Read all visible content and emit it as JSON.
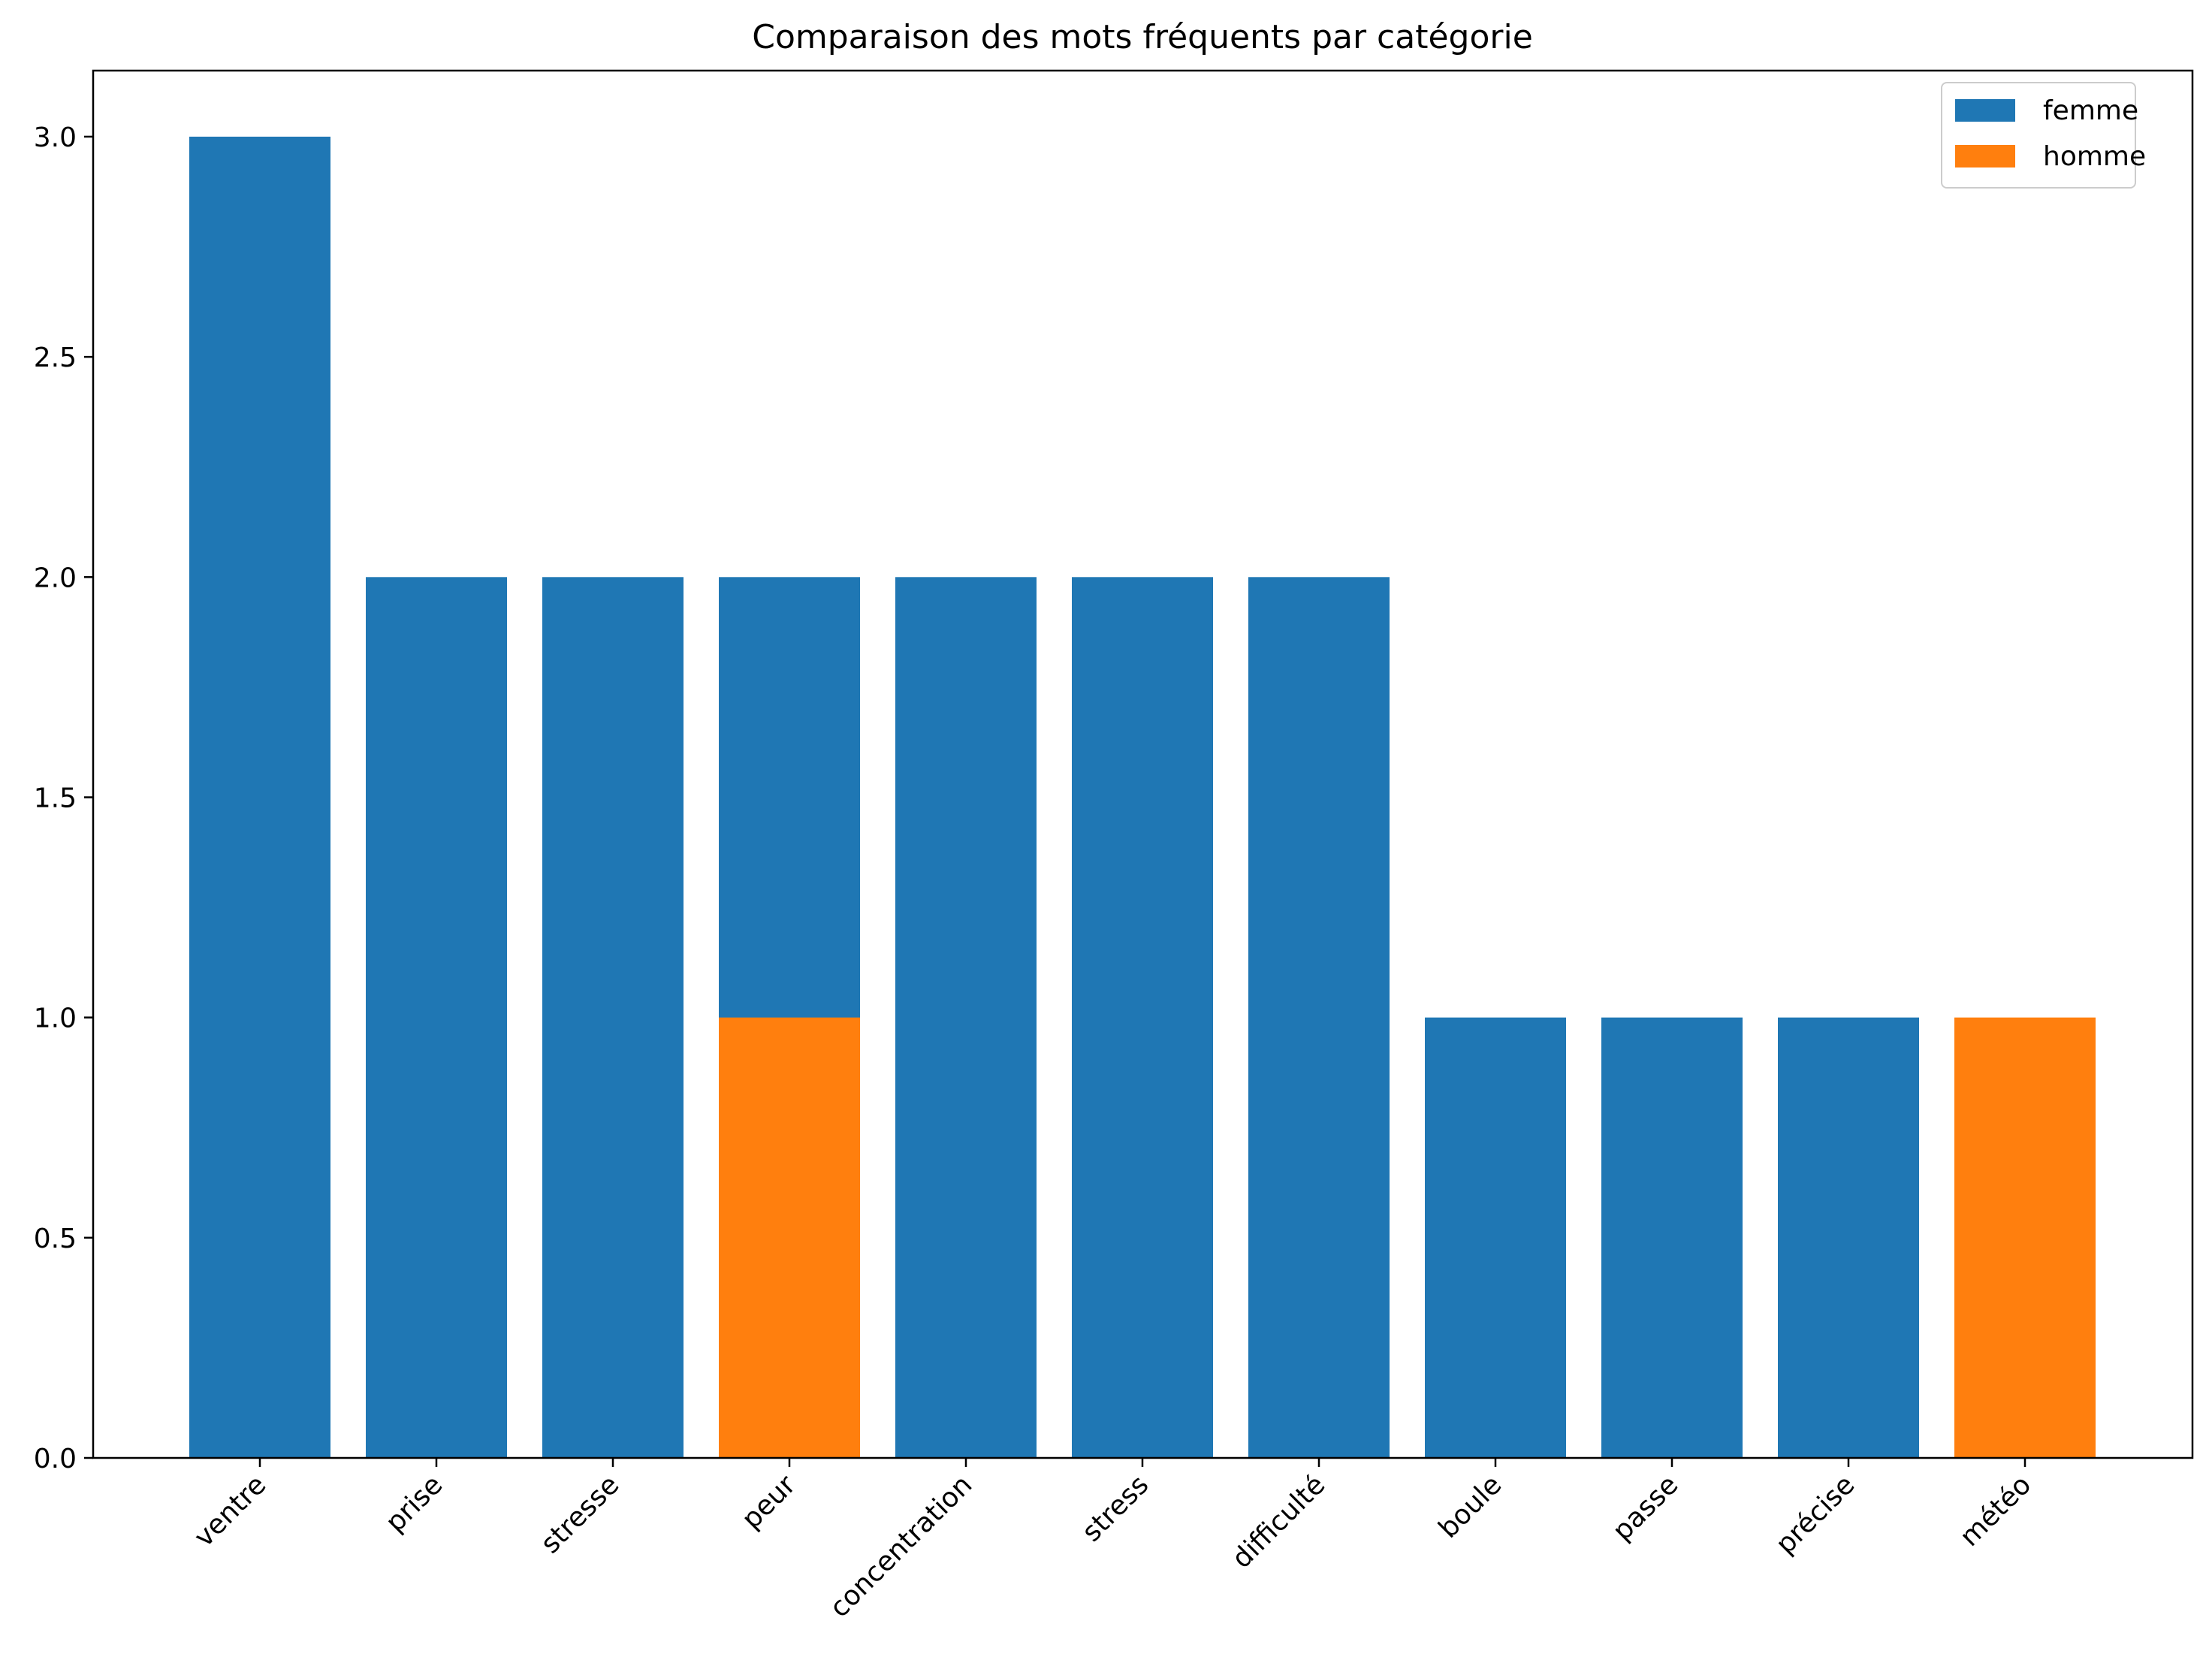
{
  "chart_data": {
    "type": "bar",
    "title": "Comparaison des mots fréquents par catégorie",
    "xlabel": "",
    "ylabel": "",
    "ylim": [
      0,
      3.15
    ],
    "yticks": [
      "0.0",
      "0.5",
      "1.0",
      "1.5",
      "2.0",
      "2.5",
      "3.0"
    ],
    "grid": false,
    "legend_position": "top-right",
    "categories": [
      "ventre",
      "prise",
      "stresse",
      "peur",
      "concentration",
      "stress",
      "difficulté",
      "boule",
      "passe",
      "précise",
      "météo"
    ],
    "series": [
      {
        "name": "femme",
        "color": "#1f77b4",
        "values": [
          3,
          2,
          2,
          2,
          2,
          2,
          2,
          1,
          1,
          1,
          0
        ]
      },
      {
        "name": "homme",
        "color": "#ff7f0e",
        "values": [
          0,
          0,
          0,
          1,
          0,
          0,
          0,
          0,
          0,
          0,
          1
        ]
      }
    ]
  }
}
